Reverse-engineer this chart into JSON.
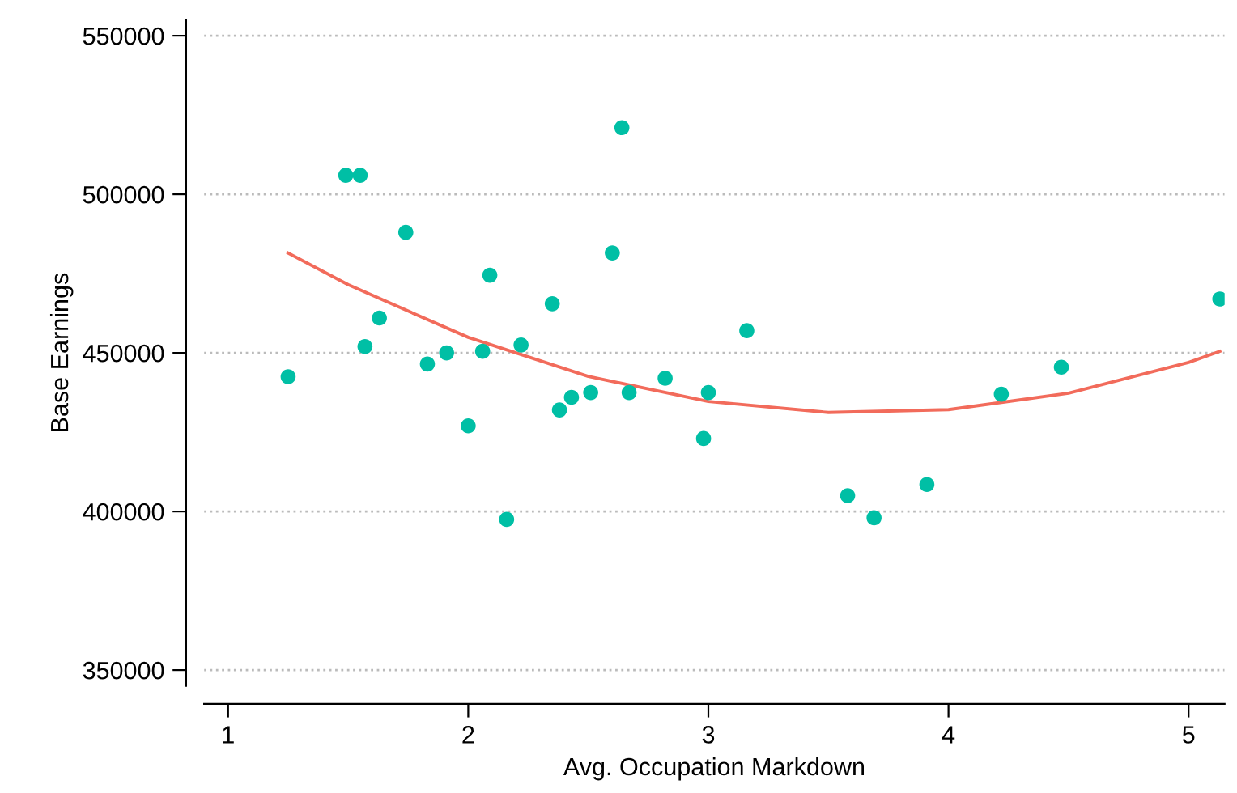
{
  "chart_data": {
    "type": "scatter",
    "xlabel": "Avg. Occupation Markdown",
    "ylabel": "Base Earnings",
    "xlim": [
      0.9,
      5.15
    ],
    "ylim": [
      345000,
      555000
    ],
    "xticks": [
      1,
      2,
      3,
      4,
      5
    ],
    "yticks": [
      350000,
      400000,
      450000,
      500000,
      550000
    ],
    "grid": "y",
    "series": [
      {
        "marker": "circle",
        "color": "#00bfa5",
        "x": [
          1.25,
          1.49,
          1.55,
          1.57,
          1.63,
          1.74,
          1.83,
          1.91,
          2.0,
          2.06,
          2.09,
          2.16,
          2.22,
          2.35,
          2.38,
          2.43,
          2.51,
          2.6,
          2.64,
          2.67,
          2.82,
          3.0,
          2.98,
          3.16,
          3.58,
          3.69,
          3.91,
          4.22,
          4.47,
          5.13
        ],
        "values": [
          442500,
          506000,
          506000,
          452000,
          461000,
          488000,
          446500,
          450000,
          427000,
          450500,
          474500,
          397500,
          452500,
          465500,
          432000,
          436000,
          437500,
          481500,
          521000,
          437500,
          442000,
          437500,
          423000,
          457000,
          405000,
          398000,
          408500,
          437000,
          445500,
          467000
        ]
      },
      {
        "type": "line",
        "color": "#f26b5b",
        "x": [
          1.25,
          1.5,
          2,
          2.5,
          3,
          3.5,
          4,
          4.5,
          5,
          5.13
        ],
        "values": [
          481500,
          471500,
          454900,
          442600,
          434700,
          431200,
          432100,
          437300,
          447000,
          450500
        ]
      }
    ]
  }
}
